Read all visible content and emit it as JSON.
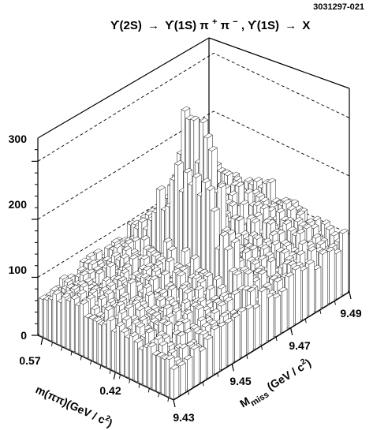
{
  "figure_id": "3031297-021",
  "chart_data": {
    "type": "lego-histogram-3d",
    "title": "ϒ(2S) → ϒ(1S) π⁺π⁻, ϒ(1S) → X",
    "title_parts": {
      "left": "ϒ(2S)",
      "mid": "ϒ(1S) π",
      "pi_plus": "+",
      "pi_minus": "π",
      "minus": "−",
      "right": ", ϒ(1S)",
      "x": "X"
    },
    "z_axis": {
      "range": [
        0,
        340
      ],
      "ticks": [
        0,
        100,
        200,
        300
      ],
      "tick_labels": [
        "0",
        "100",
        "200",
        "300"
      ]
    },
    "x_axis": {
      "label_main": "m(ππ)(GeV / c",
      "label_sup": "2",
      "label_end": ")",
      "range": [
        0.3,
        0.58
      ],
      "ticks": [
        0.57,
        0.42
      ],
      "tick_labels": [
        "0.57",
        "0.42"
      ]
    },
    "y_axis": {
      "label_M": "M",
      "label_sub": "miss",
      "label_unit": "(GeV / c",
      "label_sup": "2",
      "label_end": ")",
      "range": [
        9.43,
        9.49
      ],
      "ticks": [
        9.43,
        9.45,
        9.47,
        9.49
      ],
      "tick_labels": [
        "9.43",
        "9.45",
        "9.47",
        "9.49"
      ]
    },
    "grid_dashed_levels": [
      100,
      200,
      300
    ],
    "peak": {
      "m_pipi": 0.44,
      "m_miss": 9.4603,
      "height": 320
    },
    "description": "Lego plot of candidate events vs dipion mass and missing mass; sharp peak at the Upsilon(1S) missing mass on a flat background."
  }
}
